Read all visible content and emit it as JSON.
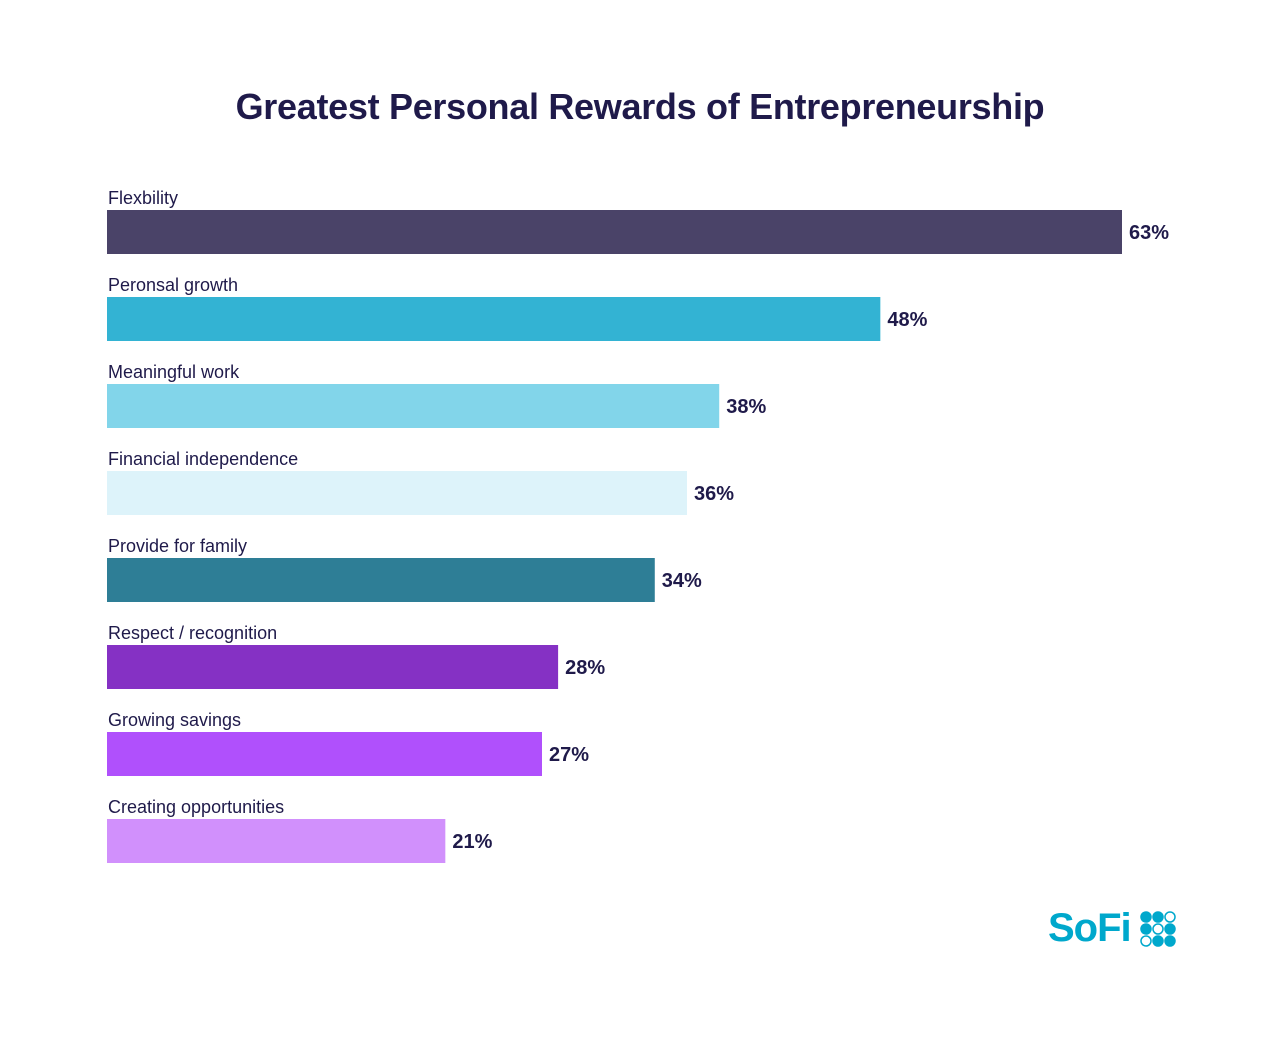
{
  "chart_data": {
    "type": "bar",
    "orientation": "horizontal",
    "title": "Greatest Personal Rewards of Entrepreneurship",
    "categories": [
      "Flexbility",
      "Peronsal growth",
      "Meaningful work",
      "Financial independence",
      "Provide for family",
      "Respect / recognition",
      "Growing savings",
      "Creating opportunities"
    ],
    "values": [
      63,
      48,
      38,
      36,
      34,
      28,
      27,
      21
    ],
    "value_labels": [
      "63%",
      "48%",
      "38%",
      "36%",
      "34%",
      "28%",
      "27%",
      "21%"
    ],
    "colors": [
      "#4a4368",
      "#33b3d3",
      "#82d5ea",
      "#ddf3fa",
      "#2e7e96",
      "#8531c4",
      "#b050fc",
      "#d190fc"
    ],
    "xlabel": "",
    "ylabel": "",
    "xlim": [
      0,
      63
    ],
    "grid": false
  },
  "brand": {
    "logo_text": "SoFi",
    "color": "#00a8cc"
  }
}
